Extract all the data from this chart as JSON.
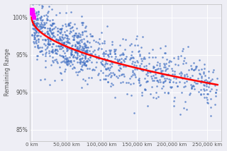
{
  "title": "",
  "xlabel": "",
  "ylabel": "Remaining Range",
  "bg_color": "#eeeef5",
  "grid_color": "#ffffff",
  "scatter_color": "#4472c4",
  "highlight_color": "#ff00ff",
  "curve_color": "#ff0000",
  "yticks": [
    0.85,
    0.9,
    0.95,
    1.0
  ],
  "ytick_labels": [
    "85%",
    "90%",
    "95%",
    "100%"
  ],
  "xtick_values": [
    0,
    50000,
    100000,
    150000,
    200000,
    250000
  ],
  "xtick_labels": [
    "0 km",
    "50,000 km",
    "100,000 km",
    "150,000 km",
    "200,000 km",
    "250,000 km"
  ],
  "xlim": [
    -3000,
    270000
  ],
  "ylim": [
    0.835,
    1.018
  ],
  "curve_a": 1.0,
  "curve_b": -0.38,
  "curve_scale": 265000,
  "n_points": 1000,
  "seed": 42
}
